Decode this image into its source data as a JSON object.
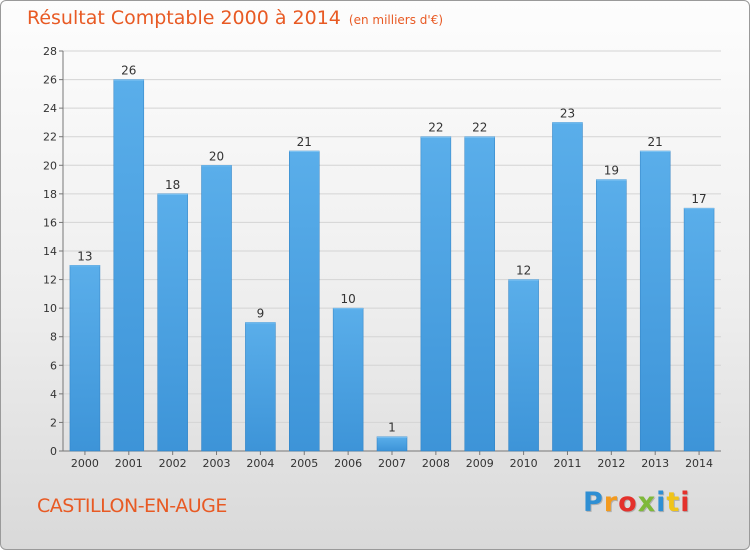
{
  "header": {
    "title": "Résultat Comptable 2000 à 2014",
    "subtitle": "(en milliers d'€)"
  },
  "footer": {
    "town": "CASTILLON-EN-AUGE",
    "logo_text": "Proxiti"
  },
  "colors": {
    "bar": "#3d94d8",
    "bar_top": "#5aaeea",
    "text_accent": "#e85a24",
    "grid": "#d4d4d4"
  },
  "chart_data": {
    "type": "bar",
    "categories": [
      "2000",
      "2001",
      "2002",
      "2003",
      "2004",
      "2005",
      "2006",
      "2007",
      "2008",
      "2009",
      "2010",
      "2011",
      "2012",
      "2013",
      "2014"
    ],
    "values": [
      13,
      26,
      18,
      20,
      9,
      21,
      10,
      1,
      22,
      22,
      12,
      23,
      19,
      21,
      17
    ],
    "yticks": [
      0,
      2,
      4,
      6,
      8,
      10,
      12,
      14,
      16,
      18,
      20,
      22,
      24,
      26,
      28
    ],
    "ylim": [
      0,
      28
    ],
    "grid": true,
    "data_labels": true
  }
}
